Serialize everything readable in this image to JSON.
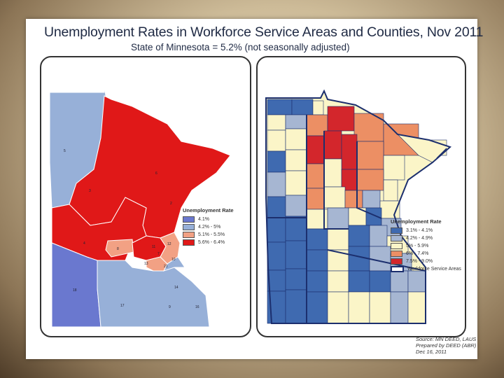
{
  "title": "Unemployment Rates in Workforce Service Areas and Counties, Nov 2011",
  "subtitle": "State of Minnesota = 5.2% (not seasonally adjusted)",
  "left_map": {
    "legend_title": "Unemployment Rate",
    "legend": [
      {
        "label": "4.1%",
        "color": "#6a78cf"
      },
      {
        "label": "4.2% - 5%",
        "color": "#97b0d8"
      },
      {
        "label": "5.1% - 5.5%",
        "color": "#f2a184"
      },
      {
        "label": "5.6% - 6.4%",
        "color": "#e01818"
      }
    ],
    "region_labels": [
      "5",
      "6",
      "3",
      "2",
      "18",
      "4",
      "21",
      "8",
      "13",
      "12",
      "17",
      "16",
      "14",
      "9",
      "7",
      "11",
      "10"
    ]
  },
  "right_map": {
    "legend_title": "Unemployment Rate",
    "legend": [
      {
        "label": "3.1% - 4.1%",
        "color": "#3f6ab0"
      },
      {
        "label": "4.2% - 4.9%",
        "color": "#a6b6d2"
      },
      {
        "label": "5% - 5.9%",
        "color": "#fbf5c8"
      },
      {
        "label": "6% - 7.4%",
        "color": "#ec8f64"
      },
      {
        "label": "7.5% - 9.0%",
        "color": "#d3262c"
      }
    ],
    "boundary_label": "Workforce Service Areas",
    "boundary_color": "#1c2f6e"
  },
  "source": {
    "line1": "Source: MN DEED, LAUS",
    "line2": "Prepared by DEED (ABR)",
    "line3": "Dec 16, 2011"
  }
}
